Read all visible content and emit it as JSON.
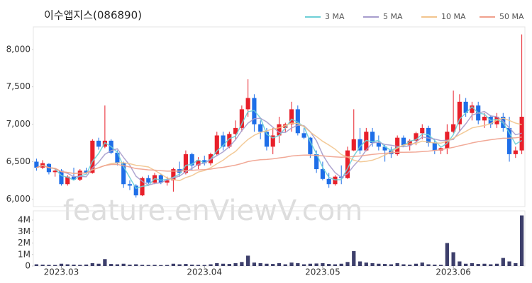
{
  "chart_data": {
    "type": "candlestick",
    "title": "이수앱지스(086890)",
    "watermark": "feature.enViewV.com",
    "categories": [
      null,
      null,
      null,
      null,
      "2023.03",
      null,
      null,
      null,
      null,
      null,
      null,
      null,
      null,
      null,
      null,
      null,
      null,
      null,
      null,
      null,
      null,
      null,
      null,
      null,
      null,
      null,
      null,
      "2023.04",
      null,
      null,
      null,
      null,
      null,
      null,
      null,
      null,
      null,
      null,
      null,
      null,
      null,
      null,
      null,
      null,
      null,
      null,
      "2023.05",
      null,
      null,
      null,
      null,
      null,
      null,
      null,
      null,
      null,
      null,
      null,
      null,
      null,
      null,
      null,
      null,
      null,
      null,
      null,
      null,
      "2023.06",
      null,
      null,
      null,
      null,
      null,
      null,
      null,
      null,
      null,
      null,
      null
    ],
    "open": [
      6500,
      6420,
      6470,
      6360,
      6380,
      6200,
      6300,
      6260,
      6380,
      6350,
      6780,
      6700,
      6780,
      6620,
      6480,
      6200,
      6180,
      6050,
      6280,
      6220,
      6320,
      6220,
      6250,
      6400,
      6350,
      6600,
      6450,
      6520,
      6480,
      6600,
      6850,
      6700,
      6870,
      6950,
      7200,
      7350,
      7000,
      6900,
      6700,
      6850,
      6950,
      7000,
      7200,
      6880,
      6820,
      6600,
      6400,
      6270,
      6200,
      6300,
      6280,
      6650,
      6800,
      6650,
      6900,
      6750,
      6700,
      6650,
      6600,
      6820,
      6720,
      6780,
      6880,
      6950,
      6750,
      6650,
      6680,
      6900,
      7000,
      7300,
      7150,
      7250,
      7050,
      7100,
      7000,
      7100,
      6950,
      6600,
      6650
    ],
    "high": [
      6540,
      6520,
      6480,
      6400,
      6400,
      6320,
      6420,
      6400,
      6420,
      6800,
      6820,
      7250,
      6800,
      6650,
      6500,
      6250,
      6200,
      6300,
      6320,
      6350,
      6340,
      6300,
      6420,
      6500,
      6650,
      6620,
      6560,
      6580,
      6620,
      6900,
      6900,
      6900,
      7050,
      7250,
      7600,
      7400,
      7050,
      6950,
      6950,
      7100,
      7020,
      7300,
      7250,
      6950,
      6830,
      6650,
      6500,
      6350,
      6320,
      6450,
      6700,
      7200,
      6950,
      6950,
      6950,
      6850,
      6730,
      6700,
      6850,
      6850,
      6800,
      6900,
      7000,
      6980,
      6800,
      6700,
      7000,
      7450,
      7400,
      7350,
      7300,
      7300,
      7150,
      7120,
      7150,
      7150,
      7100,
      6700,
      8200
    ],
    "low": [
      6380,
      6400,
      6330,
      6300,
      6180,
      6180,
      6250,
      6240,
      6340,
      6340,
      6660,
      6680,
      6600,
      6450,
      6150,
      6120,
      6020,
      6040,
      6200,
      6200,
      6200,
      6180,
      6100,
      6300,
      6330,
      6380,
      6400,
      6450,
      6450,
      6580,
      6650,
      6680,
      6800,
      6900,
      7100,
      6900,
      6800,
      6650,
      6600,
      6750,
      6900,
      6900,
      6850,
      6800,
      6550,
      6350,
      6250,
      6150,
      6180,
      6200,
      6270,
      6640,
      6600,
      6640,
      6700,
      6650,
      6500,
      6550,
      6580,
      6700,
      6650,
      6720,
      6800,
      6700,
      6600,
      6600,
      6600,
      6880,
      6900,
      7100,
      7050,
      7000,
      6950,
      6950,
      6950,
      6900,
      6500,
      6550,
      6600
    ],
    "close": [
      6420,
      6480,
      6360,
      6380,
      6200,
      6300,
      6260,
      6380,
      6350,
      6780,
      6700,
      6780,
      6620,
      6480,
      6200,
      6180,
      6050,
      6280,
      6220,
      6320,
      6220,
      6250,
      6400,
      6350,
      6600,
      6450,
      6520,
      6480,
      6600,
      6850,
      6700,
      6870,
      6950,
      7200,
      7350,
      7000,
      6900,
      6700,
      6850,
      7000,
      7000,
      7200,
      6880,
      6820,
      6600,
      6400,
      6270,
      6200,
      6300,
      6280,
      6650,
      6800,
      6650,
      6900,
      6750,
      6700,
      6650,
      6600,
      6820,
      6720,
      6780,
      6880,
      6950,
      6750,
      6650,
      6680,
      6900,
      7000,
      7300,
      7150,
      7250,
      7050,
      7100,
      7000,
      7100,
      6950,
      6600,
      6650,
      7100
    ],
    "volume": [
      150000,
      120000,
      100000,
      90000,
      200000,
      150000,
      120000,
      100000,
      130000,
      250000,
      200000,
      600000,
      180000,
      150000,
      200000,
      120000,
      150000,
      100000,
      90000,
      100000,
      80000,
      90000,
      200000,
      150000,
      180000,
      120000,
      100000,
      90000,
      150000,
      250000,
      200000,
      180000,
      250000,
      350000,
      900000,
      300000,
      250000,
      200000,
      180000,
      250000,
      150000,
      300000,
      250000,
      150000,
      200000,
      220000,
      250000,
      180000,
      150000,
      200000,
      350000,
      1300000,
      400000,
      300000,
      250000,
      200000,
      180000,
      150000,
      250000,
      150000,
      120000,
      200000,
      300000,
      150000,
      120000,
      100000,
      2000000,
      1200000,
      400000,
      200000,
      250000,
      180000,
      200000,
      150000,
      200000,
      700000,
      400000,
      250000,
      4400000
    ],
    "up_color": "#e8202a",
    "down_color": "#1e6ee8",
    "volume_color": "#3d3f6b",
    "ylim": [
      5900,
      8300
    ],
    "yticks": [
      {
        "value": 6000,
        "label": "6,000"
      },
      {
        "value": 6500,
        "label": "6,500"
      },
      {
        "value": 7000,
        "label": "7,000"
      },
      {
        "value": 7500,
        "label": "7,500"
      },
      {
        "value": 8000,
        "label": "8,000"
      }
    ],
    "y2lim": [
      0,
      4800000
    ],
    "y2ticks": [
      0,
      {
        "value": 1000000,
        "label": "1M"
      },
      {
        "value": 2000000,
        "label": "2M"
      },
      {
        "value": 3000000,
        "label": "3M"
      },
      {
        "value": 4000000,
        "label": "4M"
      }
    ],
    "moving_averages": [
      {
        "name": "3 MA",
        "color": "#6dcfd6"
      },
      {
        "name": "5 MA",
        "color": "#a69ccc"
      },
      {
        "name": "10 MA",
        "color": "#f2c48d"
      },
      {
        "name": "50 MA",
        "color": "#f0a08c"
      }
    ]
  }
}
